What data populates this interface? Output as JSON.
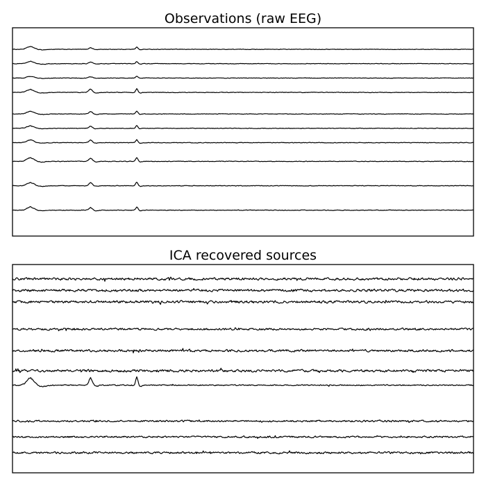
{
  "chart_data": [
    {
      "type": "line",
      "title": "Observations (raw EEG)",
      "xlabel": "",
      "ylabel": "",
      "grid": false,
      "ticks": "none",
      "n_samples": 680,
      "series": [
        {
          "offset": 0.9,
          "amp": 0.42,
          "noise": 0.12,
          "spikes": [
            [
              4,
              1.0,
              1.6
            ],
            [
              17,
              0.6,
              0.8
            ],
            [
              27,
              0.9,
              0.5
            ]
          ]
        },
        {
          "offset": 0.8,
          "amp": 0.42,
          "noise": 0.12,
          "spikes": [
            [
              4,
              0.9,
              1.6
            ],
            [
              17,
              0.6,
              0.8
            ],
            [
              27,
              0.8,
              0.5
            ]
          ]
        },
        {
          "offset": 0.7,
          "amp": 0.42,
          "noise": 0.12,
          "spikes": [
            [
              4,
              0.6,
              1.6
            ],
            [
              17,
              0.5,
              0.8
            ],
            [
              27,
              0.6,
              0.5
            ]
          ]
        },
        {
          "offset": 0.6,
          "amp": 0.42,
          "noise": 0.14,
          "spikes": [
            [
              4,
              1.1,
              1.6
            ],
            [
              17,
              1.2,
              0.8
            ],
            [
              27,
              1.3,
              0.5
            ]
          ]
        },
        {
          "offset": 0.45,
          "amp": 0.42,
          "noise": 0.13,
          "spikes": [
            [
              4,
              1.0,
              1.6
            ],
            [
              17,
              0.9,
              0.8
            ],
            [
              27,
              1.1,
              0.5
            ]
          ]
        },
        {
          "offset": 0.35,
          "amp": 0.42,
          "noise": 0.13,
          "spikes": [
            [
              4,
              0.9,
              1.6
            ],
            [
              17,
              0.8,
              0.8
            ],
            [
              27,
              1.0,
              0.5
            ]
          ]
        },
        {
          "offset": 0.25,
          "amp": 0.42,
          "noise": 0.13,
          "spikes": [
            [
              4,
              1.0,
              1.6
            ],
            [
              17,
              0.9,
              0.8
            ],
            [
              27,
              1.1,
              0.5
            ]
          ]
        },
        {
          "offset": 0.12,
          "amp": 0.42,
          "noise": 0.14,
          "spikes": [
            [
              4,
              1.3,
              1.6
            ],
            [
              17,
              1.2,
              0.8
            ],
            [
              27,
              1.4,
              0.5
            ]
          ]
        },
        {
          "offset": -0.05,
          "amp": 0.42,
          "noise": 0.14,
          "spikes": [
            [
              4,
              1.2,
              1.6
            ],
            [
              17,
              1.1,
              0.8
            ],
            [
              27,
              1.3,
              0.5
            ]
          ]
        },
        {
          "offset": -0.22,
          "amp": 0.42,
          "noise": 0.14,
          "spikes": [
            [
              4,
              1.2,
              1.6
            ],
            [
              17,
              1.0,
              0.8
            ],
            [
              27,
              1.2,
              0.5
            ]
          ]
        }
      ]
    },
    {
      "type": "line",
      "title": "ICA recovered sources",
      "xlabel": "",
      "ylabel": "",
      "grid": false,
      "ticks": "none",
      "n_samples": 680,
      "series": [
        {
          "offset": 0.95,
          "amp": 0.42,
          "noise": 0.55,
          "spikes": []
        },
        {
          "offset": 0.87,
          "amp": 0.42,
          "noise": 0.55,
          "spikes": []
        },
        {
          "offset": 0.79,
          "amp": 0.42,
          "noise": 0.55,
          "spikes": []
        },
        {
          "offset": 0.6,
          "amp": 0.42,
          "noise": 0.45,
          "spikes": []
        },
        {
          "offset": 0.45,
          "amp": 0.42,
          "noise": 0.5,
          "spikes": []
        },
        {
          "offset": 0.31,
          "amp": 0.42,
          "noise": 0.55,
          "spikes": []
        },
        {
          "offset": 0.21,
          "amp": 0.42,
          "noise": 0.25,
          "spikes": [
            [
              4,
              2.7,
              1.6
            ],
            [
              17,
              2.6,
              0.8
            ],
            [
              27,
              2.9,
              0.5
            ]
          ]
        },
        {
          "offset": -0.04,
          "amp": 0.42,
          "noise": 0.4,
          "spikes": []
        },
        {
          "offset": -0.15,
          "amp": 0.42,
          "noise": 0.4,
          "spikes": []
        },
        {
          "offset": -0.26,
          "amp": 0.42,
          "noise": 0.45,
          "spikes": []
        }
      ]
    }
  ]
}
